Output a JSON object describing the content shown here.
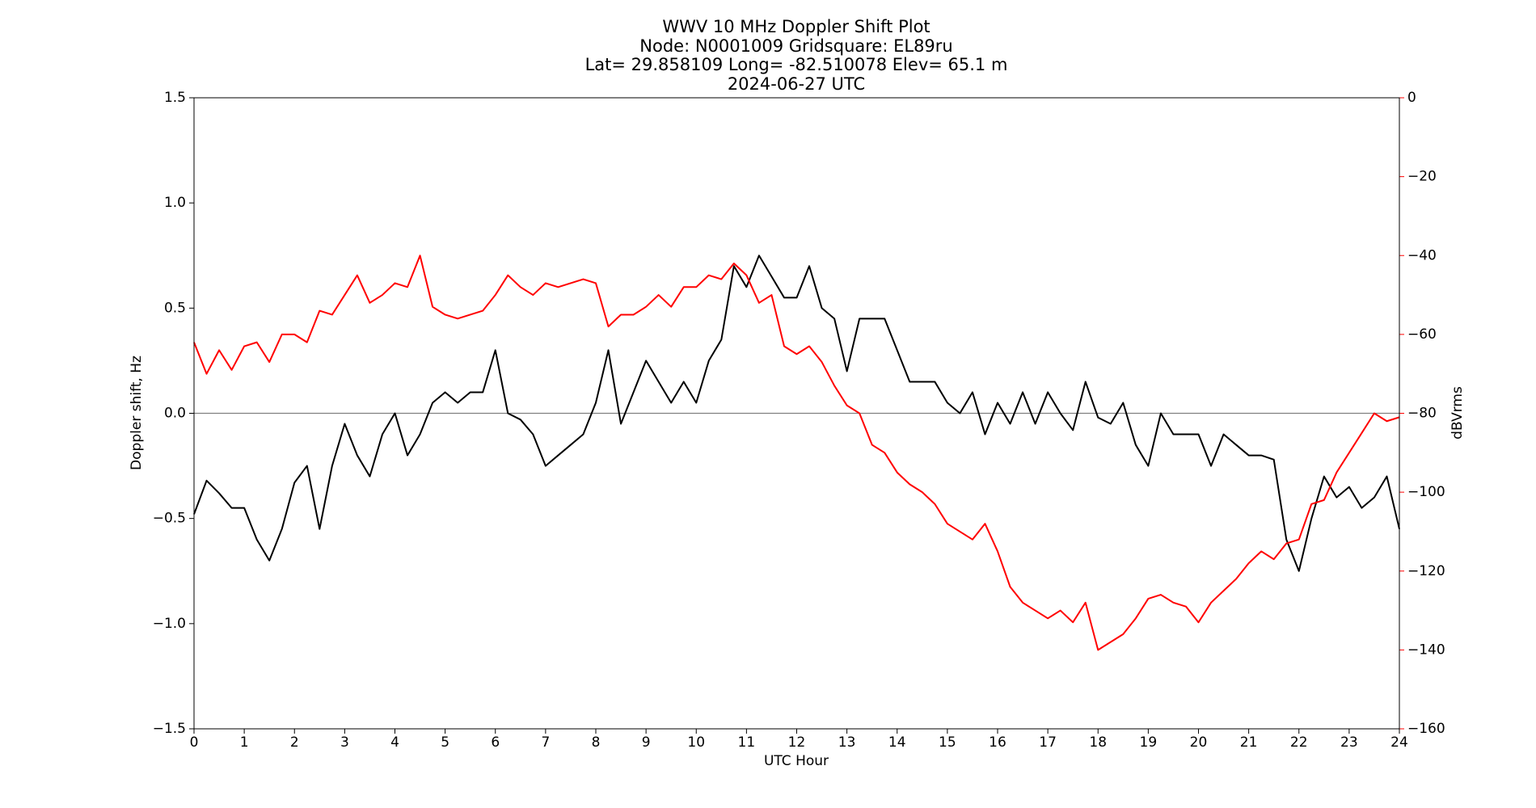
{
  "chart_data": {
    "type": "line",
    "title": [
      "WWV 10 MHz Doppler Shift Plot",
      "Node:  N0001009     Gridsquare:  EL89ru",
      "Lat= 29.858109    Long= -82.510078    Elev= 65.1 m",
      "2024-06-27  UTC"
    ],
    "x_label": "UTC Hour",
    "y_label": "Doppler shift, Hz",
    "y2_label": "dBVrms",
    "y2_color": "#ff0000",
    "x": [
      0,
      0.25,
      0.5,
      0.75,
      1,
      1.25,
      1.5,
      1.75,
      2,
      2.25,
      2.5,
      2.75,
      3,
      3.25,
      3.5,
      3.75,
      4,
      4.25,
      4.5,
      4.75,
      5,
      5.25,
      5.5,
      5.75,
      6,
      6.25,
      6.5,
      6.75,
      7,
      7.25,
      7.5,
      7.75,
      8,
      8.25,
      8.5,
      8.75,
      9,
      9.25,
      9.5,
      9.75,
      10,
      10.25,
      10.5,
      10.75,
      11,
      11.25,
      11.5,
      11.75,
      12,
      12.25,
      12.5,
      12.75,
      13,
      13.25,
      13.5,
      13.75,
      14,
      14.25,
      14.5,
      14.75,
      15,
      15.25,
      15.5,
      15.75,
      16,
      16.25,
      16.5,
      16.75,
      17,
      17.25,
      17.5,
      17.75,
      18,
      18.25,
      18.5,
      18.75,
      19,
      19.25,
      19.5,
      19.75,
      20,
      20.25,
      20.5,
      20.75,
      21,
      21.25,
      21.5,
      21.75,
      22,
      22.25,
      22.5,
      22.75,
      23,
      23.25,
      23.5,
      23.75,
      24
    ],
    "series": [
      {
        "color": "#000000",
        "axis": "y",
        "values": [
          -0.48,
          -0.32,
          -0.38,
          -0.45,
          -0.45,
          -0.6,
          -0.7,
          -0.55,
          -0.33,
          -0.25,
          -0.55,
          -0.25,
          -0.05,
          -0.2,
          -0.3,
          -0.1,
          0.0,
          -0.2,
          -0.1,
          0.05,
          0.1,
          0.05,
          0.1,
          0.1,
          0.3,
          0.0,
          -0.03,
          -0.1,
          -0.25,
          -0.2,
          -0.15,
          -0.1,
          0.05,
          0.3,
          -0.05,
          0.1,
          0.25,
          0.15,
          0.05,
          0.15,
          0.05,
          0.25,
          0.35,
          0.7,
          0.6,
          0.75,
          0.65,
          0.55,
          0.55,
          0.7,
          0.5,
          0.45,
          0.2,
          0.45,
          0.45,
          0.45,
          0.3,
          0.15,
          0.15,
          0.15,
          0.05,
          0.0,
          0.1,
          -0.1,
          0.05,
          -0.05,
          0.1,
          -0.05,
          0.1,
          0.0,
          -0.08,
          0.15,
          -0.02,
          -0.05,
          0.05,
          -0.15,
          -0.25,
          0.0,
          -0.1,
          -0.1,
          -0.1,
          -0.25,
          -0.1,
          -0.15,
          -0.2,
          -0.2,
          -0.22,
          -0.6,
          -0.75,
          -0.5,
          -0.3,
          -0.4,
          -0.35,
          -0.45,
          -0.4,
          -0.3,
          -0.55
        ]
      },
      {
        "color": "#ff0000",
        "axis": "y2",
        "values": [
          -62,
          -70,
          -64,
          -69,
          -63,
          -62,
          -67,
          -60,
          -60,
          -62,
          -54,
          -55,
          -50,
          -45,
          -52,
          -50,
          -47,
          -48,
          -40,
          -53,
          -55,
          -56,
          -55,
          -54,
          -50,
          -45,
          -48,
          -50,
          -47,
          -48,
          -47,
          -46,
          -47,
          -58,
          -55,
          -55,
          -53,
          -50,
          -53,
          -48,
          -48,
          -45,
          -46,
          -42,
          -45,
          -52,
          -50,
          -63,
          -65,
          -63,
          -67,
          -73,
          -78,
          -80,
          -88,
          -90,
          -95,
          -98,
          -100,
          -103,
          -108,
          -110,
          -112,
          -108,
          -115,
          -124,
          -128,
          -130,
          -132,
          -130,
          -133,
          -128,
          -140,
          -138,
          -136,
          -132,
          -127,
          -126,
          -128,
          -129,
          -133,
          -128,
          -125,
          -122,
          -118,
          -115,
          -117,
          -113,
          -112,
          -103,
          -102,
          -95,
          -90,
          -85,
          -80,
          -82,
          -81
        ]
      }
    ],
    "hline": {
      "value": 0,
      "color": "#808080"
    },
    "xlim": [
      0,
      24
    ],
    "xticks": [
      0,
      1,
      2,
      3,
      4,
      5,
      6,
      7,
      8,
      9,
      10,
      11,
      12,
      13,
      14,
      15,
      16,
      17,
      18,
      19,
      20,
      21,
      22,
      23,
      24
    ],
    "ylim": [
      -1.5,
      1.5
    ],
    "yticks": [
      {
        "value": -1.5,
        "label": "−1.5"
      },
      {
        "value": -1.0,
        "label": "−1.0"
      },
      {
        "value": -0.5,
        "label": "−0.5"
      },
      {
        "value": 0,
        "label": "0.0"
      },
      0.5,
      {
        "value": 1.0,
        "label": "1.0"
      },
      1.5
    ],
    "y2lim": [
      -160,
      0
    ],
    "y2ticks": [
      {
        "value": -160,
        "label": "−160"
      },
      {
        "value": -140,
        "label": "−140"
      },
      {
        "value": -120,
        "label": "−120"
      },
      {
        "value": -100,
        "label": "−100"
      },
      {
        "value": -80,
        "label": "−80"
      },
      {
        "value": -60,
        "label": "−60"
      },
      {
        "value": -40,
        "label": "−40"
      },
      {
        "value": -20,
        "label": "−20"
      },
      0
    ]
  }
}
